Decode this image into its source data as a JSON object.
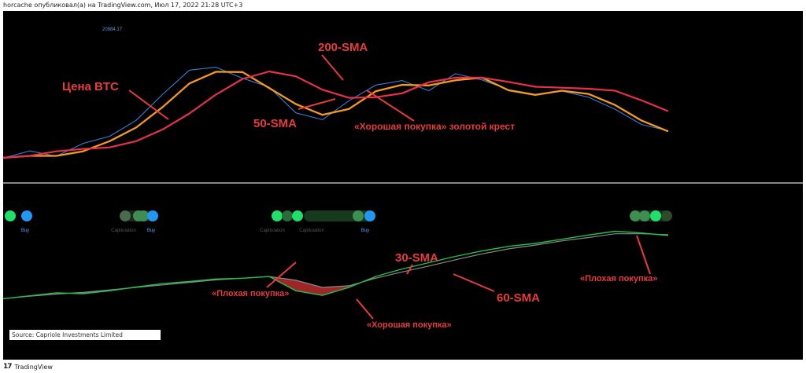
{
  "header": {
    "text": "horcache опубликовал(а) на TradingView.com, Июл 17, 2022 21:28 UTC+3"
  },
  "footer": {
    "logo_mark": "17",
    "brand": "TradingView"
  },
  "price_pane": {
    "last_price": "20984.17"
  },
  "source": "Source: Capriole Investments Limited",
  "colors": {
    "background": "#000000",
    "btc_price": "#2f80d4",
    "sma_50": "#f59a1c",
    "sma_200": "#e8304a",
    "sma_30": "#20c14a",
    "sma_60": "#8a8a8a",
    "bad_buy_fill": "#b02a2a",
    "annotation": "#e63c3c",
    "signal_buy": "#2196f3",
    "signal_green": "#1ee06a"
  },
  "annotations": {
    "btc_price": "Цена BTC",
    "sma_200": "200-SMA",
    "sma_50": "50-SMA",
    "golden_cross": "«Хорошая покупка» золотой крест",
    "sma_30": "30-SMA",
    "sma_60": "60-SMA",
    "bad_buy_1": "«Плохая покупка»",
    "bad_buy_2": "«Плохая покупка»",
    "good_buy": "«Хорошая покупка»"
  },
  "signal_labels": [
    "Buy",
    "Capitulation",
    "Buy",
    "Capitulation",
    "Capitulation",
    "Buy"
  ],
  "chart_data": [
    {
      "type": "line",
      "title": "",
      "series": [
        {
          "name": "Цена BTC",
          "values": [
            36.9,
            39.1,
            37.5,
            41.4,
            43.6,
            48.5,
            56.5,
            63.9,
            64.8,
            61.4,
            58.7,
            50.8,
            48.7,
            54.5,
            59.3,
            60.7,
            57.6,
            62.8,
            60.9,
            57.9,
            56.5,
            57.5,
            55.6,
            51.9,
            47.2,
            45.3
          ]
        },
        {
          "name": "50-SMA",
          "values": [
            37.0,
            37.6,
            37.6,
            39.0,
            42.1,
            46.3,
            52.6,
            59.8,
            63.4,
            63.3,
            58.4,
            53.5,
            50.2,
            52.0,
            57.4,
            59.4,
            59.2,
            60.8,
            61.6,
            57.7,
            56.3,
            57.6,
            56.6,
            53.2,
            48.4,
            45.1
          ]
        },
        {
          "name": "200-SMA",
          "values": [
            37.0,
            37.6,
            39.0,
            39.7,
            40.2,
            42.1,
            45.7,
            50.6,
            56.4,
            61.2,
            63.5,
            62.0,
            57.9,
            55.4,
            55.6,
            56.8,
            60.2,
            61.6,
            61.6,
            60.3,
            58.8,
            58.5,
            58.2,
            57.6,
            54.6,
            51.3
          ]
        }
      ]
    },
    {
      "type": "line",
      "title": "",
      "series": [
        {
          "name": "30-SMA",
          "values": [
            6.3,
            7.0,
            7.7,
            7.5,
            8.2,
            9.1,
            9.9,
            10.4,
            11.0,
            11.2,
            11.6,
            8.2,
            7.1,
            9.0,
            11.6,
            13.4,
            14.9,
            16.4,
            17.7,
            18.8,
            19.5,
            20.5,
            21.5,
            22.4,
            22.0,
            21.4
          ]
        },
        {
          "name": "60-SMA",
          "values": [
            6.3,
            6.9,
            7.4,
            7.8,
            8.4,
            9.0,
            9.6,
            10.2,
            10.8,
            11.2,
            11.6,
            10.7,
            9.0,
            9.4,
            11.2,
            12.7,
            14.1,
            15.6,
            17.0,
            18.2,
            19.1,
            20.1,
            20.9,
            21.8,
            21.8,
            21.6
          ]
        }
      ]
    }
  ]
}
